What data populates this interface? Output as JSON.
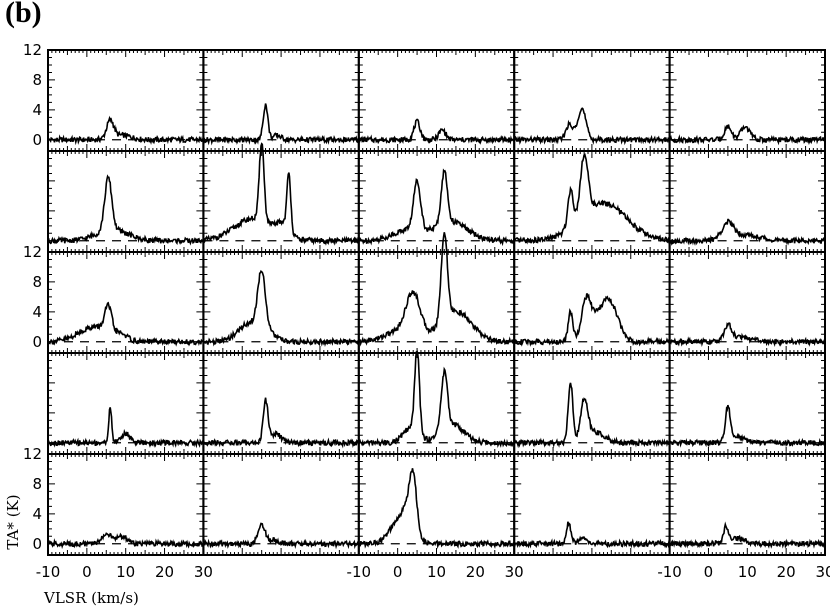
{
  "figure_label": "(b)",
  "chart_data": {
    "type": "line",
    "grid_layout": {
      "rows": 5,
      "cols": 5
    },
    "xlim": [
      -10,
      30
    ],
    "ylim": [
      -1.5,
      12
    ],
    "xlabel": "VLSR (km/s)",
    "ylabel": "TA* (K)",
    "x_ticks": [
      -10,
      0,
      10,
      20,
      30
    ],
    "y_ticks": [
      0,
      4,
      8,
      12
    ],
    "y_tick_rows": [
      0,
      2,
      4
    ],
    "x_tick_cols": [
      0,
      2,
      4
    ],
    "baseline_value": 0,
    "panels": [
      [
        {
          "comps": [
            [
              6,
              2.4,
              0.9
            ],
            [
              9,
              0.6,
              2.5
            ]
          ]
        },
        {
          "comps": [
            [
              6,
              4.7,
              0.6
            ],
            [
              9,
              0.6,
              1.0
            ]
          ]
        },
        {
          "comps": [
            [
              5,
              2.4,
              0.8
            ],
            [
              11.5,
              1.3,
              0.9
            ]
          ]
        },
        {
          "comps": [
            [
              4,
              1.8,
              0.8
            ],
            [
              6,
              0.8,
              1.2
            ],
            [
              7.5,
              3.8,
              1.0
            ]
          ]
        },
        {
          "comps": [
            [
              5,
              1.8,
              0.9
            ],
            [
              9.5,
              1.7,
              1.2
            ]
          ]
        }
      ],
      [
        {
          "comps": [
            [
              5.5,
              7,
              0.9
            ],
            [
              6.5,
              1.5,
              4.0
            ]
          ]
        },
        {
          "comps": [
            [
              5,
              10.5,
              0.6
            ],
            [
              3,
              3,
              5.0
            ],
            [
              12,
              7.5,
              0.5
            ],
            [
              10.5,
              1.5,
              1.5
            ]
          ]
        },
        {
          "comps": [
            [
              5,
              6.5,
              0.9
            ],
            [
              3,
              1.5,
              4.0
            ],
            [
              12,
              7,
              0.8
            ],
            [
              14,
              2.5,
              4.0
            ]
          ]
        },
        {
          "comps": [
            [
              4.5,
              5,
              0.7
            ],
            [
              8,
              8,
              1.0
            ],
            [
              13,
              5,
              6.0
            ]
          ]
        },
        {
          "comps": [
            [
              5,
              2,
              1.5
            ],
            [
              9,
              0.8,
              4.0
            ]
          ]
        }
      ],
      [
        {
          "comps": [
            [
              5.5,
              3.5,
              0.9
            ],
            [
              2,
              2,
              4.0
            ],
            [
              9,
              0.7,
              1.5
            ]
          ]
        },
        {
          "comps": [
            [
              5,
              8,
              1.0
            ],
            [
              2,
              2.5,
              3.0
            ],
            [
              8,
              0.6,
              1.5
            ]
          ]
        },
        {
          "comps": [
            [
              4,
              5.5,
              1.8
            ],
            [
              1,
              1.5,
              4.0
            ],
            [
              12,
              11.5,
              0.8
            ],
            [
              15,
              4,
              4.0
            ]
          ]
        },
        {
          "comps": [
            [
              4.5,
              4,
              0.6
            ],
            [
              8.5,
              5,
              1.2
            ],
            [
              14.5,
              5.2,
              2.2
            ],
            [
              11,
              2,
              2.0
            ]
          ]
        },
        {
          "comps": [
            [
              5,
              2,
              0.9
            ],
            [
              8,
              0.6,
              3.0
            ]
          ]
        }
      ],
      [
        {
          "comps": [
            [
              6,
              4.5,
              0.4
            ],
            [
              10,
              1.2,
              1.2
            ]
          ]
        },
        {
          "comps": [
            [
              6,
              5.5,
              0.6
            ],
            [
              8.5,
              1.2,
              1.5
            ]
          ]
        },
        {
          "comps": [
            [
              5,
              11,
              0.6
            ],
            [
              3.5,
              2,
              2.0
            ],
            [
              12,
              7.5,
              0.8
            ],
            [
              14,
              2.5,
              3.0
            ]
          ]
        },
        {
          "comps": [
            [
              4.5,
              8,
              0.6
            ],
            [
              8,
              5,
              0.9
            ],
            [
              10.5,
              1.5,
              2.5
            ]
          ]
        },
        {
          "comps": [
            [
              5,
              4.5,
              0.6
            ],
            [
              7,
              0.8,
              2.0
            ]
          ]
        }
      ],
      [
        {
          "comps": [
            [
              5,
              1.3,
              1.2
            ],
            [
              9,
              1.0,
              1.5
            ]
          ]
        },
        {
          "comps": [
            [
              5,
              2.5,
              0.9
            ],
            [
              8,
              0.5,
              1.5
            ]
          ]
        },
        {
          "comps": [
            [
              4,
              6.3,
              0.9
            ],
            [
              0.5,
              3,
              2.5
            ],
            [
              3,
              3,
              1.5
            ]
          ]
        },
        {
          "comps": [
            [
              4,
              2.8,
              0.6
            ],
            [
              7.5,
              0.8,
              1.0
            ]
          ]
        },
        {
          "comps": [
            [
              4.5,
              2,
              0.6
            ],
            [
              7,
              0.8,
              2.0
            ]
          ]
        }
      ]
    ]
  }
}
